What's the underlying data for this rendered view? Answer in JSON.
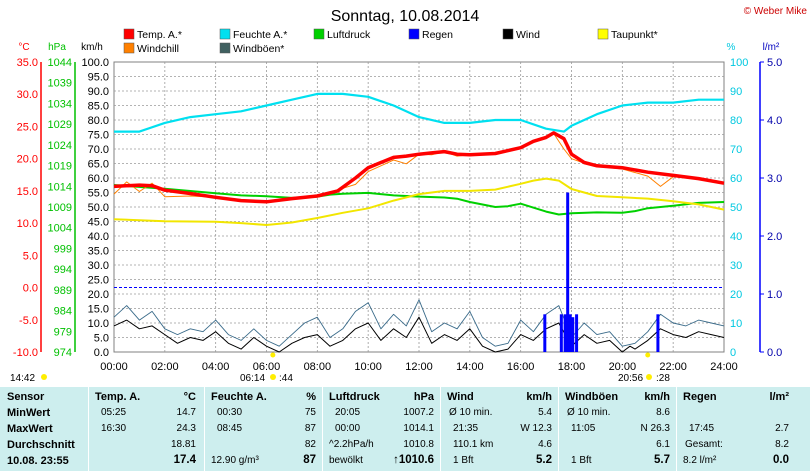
{
  "title": "Sonntag, 10.08.2014",
  "credit": "© Weber Mike",
  "colors": {
    "temp": "#ff0000",
    "humidity": "#00e0f0",
    "pressure": "#00d000",
    "rain": "#0000ff",
    "wind": "#000000",
    "dewpoint": "#ffff00",
    "windchill": "#ff8000",
    "gusts": "#406060",
    "table_bg": "#cdeeee"
  },
  "legend": [
    {
      "label": "Temp. A.*",
      "color": "#ff0000"
    },
    {
      "label": "Feuchte A.*",
      "color": "#00e0f0"
    },
    {
      "label": "Luftdruck",
      "color": "#00d000"
    },
    {
      "label": "Regen",
      "color": "#0000ff"
    },
    {
      "label": "Wind",
      "color": "#000000"
    },
    {
      "label": "Taupunkt*",
      "color": "#ffff00"
    },
    {
      "label": "Windchill",
      "color": "#ff8000"
    },
    {
      "label": "Windböen*",
      "color": "#406060"
    }
  ],
  "axis_units": {
    "temp": "°C",
    "pressure": "hPa",
    "wind": "km/h",
    "humidity": "%",
    "rain": "l/m²"
  },
  "chart_data": {
    "type": "line",
    "x_ticks": [
      "00:00",
      "02:00",
      "04:00",
      "06:00",
      "08:00",
      "10:00",
      "12:00",
      "14:00",
      "16:00",
      "18:00",
      "20:00",
      "22:00",
      "24:00"
    ],
    "xlim_hours": [
      0,
      24
    ],
    "temp_ticks": [
      "35.0",
      "30.0",
      "25.0",
      "20.0",
      "15.0",
      "10.0",
      "5.0",
      "0.0",
      "-5.0",
      "-10.0"
    ],
    "temp_lim": [
      -10,
      35
    ],
    "pressure_ticks": [
      "1044",
      "1039",
      "1034",
      "1029",
      "1024",
      "1019",
      "1014",
      "1009",
      "1004",
      "999",
      "994",
      "989",
      "984",
      "979",
      "974"
    ],
    "pressure_lim": [
      974,
      1044
    ],
    "wind_ticks": [
      "100.0",
      "95.0",
      "90.0",
      "85.0",
      "80.0",
      "75.0",
      "70.0",
      "65.0",
      "60.0",
      "55.0",
      "50.0",
      "45.0",
      "40.0",
      "35.0",
      "30.0",
      "25.0",
      "20.0",
      "15.0",
      "10.0",
      "5.0",
      "0.0"
    ],
    "wind_lim": [
      0,
      100
    ],
    "humidity_ticks": [
      "100",
      "90",
      "80",
      "70",
      "60",
      "50",
      "40",
      "30",
      "20",
      "10",
      "0"
    ],
    "humidity_lim": [
      0,
      100
    ],
    "rain_ticks": [
      "5.0",
      "4.0",
      "3.0",
      "2.0",
      "1.0",
      "0.0"
    ],
    "rain_lim": [
      0,
      5
    ],
    "temperature": {
      "name": "Temp. A.*",
      "x": [
        0,
        1,
        1.5,
        2,
        3,
        4,
        5,
        6,
        7,
        8,
        8.8,
        9.5,
        10,
        10.5,
        11,
        11.5,
        12,
        12.5,
        13,
        13.5,
        14,
        15,
        16,
        16.5,
        17,
        17.3,
        17.7,
        18,
        18.5,
        19,
        20,
        21,
        22,
        23,
        24
      ],
      "y": [
        15.7,
        15.9,
        15.8,
        15.1,
        14.6,
        14.0,
        13.5,
        13.3,
        13.8,
        14.2,
        15.0,
        17.0,
        18.6,
        19.4,
        20.2,
        20.4,
        20.7,
        20.9,
        21.1,
        20.7,
        20.6,
        20.8,
        21.7,
        22.7,
        23.3,
        24.0,
        23.1,
        20.7,
        19.4,
        18.9,
        18.6,
        17.9,
        17.4,
        16.9,
        16.2
      ]
    },
    "windchill": {
      "name": "Windchill",
      "x": [
        0,
        0.5,
        1,
        1.5,
        2,
        3,
        4,
        5,
        6,
        7,
        8,
        9,
        9.5,
        10,
        10.5,
        11,
        11.5,
        12,
        12.5,
        13,
        13.5,
        14,
        15,
        16,
        16.5,
        17,
        17.3,
        17.7,
        18,
        18.5,
        19,
        20,
        21,
        21.5,
        22,
        23,
        24
      ],
      "y": [
        14.5,
        16.4,
        14.9,
        16.2,
        14.1,
        14.2,
        14.0,
        13.5,
        13.2,
        13.8,
        14.1,
        15.4,
        16.0,
        18.0,
        18.9,
        19.8,
        19.2,
        20.7,
        20.6,
        21.1,
        20.4,
        20.6,
        20.8,
        21.6,
        22.5,
        23.4,
        23.9,
        21.5,
        20.0,
        19.3,
        18.8,
        18.4,
        17.3,
        15.7,
        17.2,
        16.8,
        16.2
      ]
    },
    "dewpoint": {
      "name": "Taupunkt*",
      "x": [
        0,
        2,
        4,
        5,
        6,
        7,
        8,
        9,
        10,
        11,
        12,
        13,
        14,
        15,
        16,
        16.5,
        17,
        17.5,
        18,
        19,
        20,
        21,
        22,
        23,
        24
      ],
      "y": [
        10.6,
        10.3,
        10.2,
        10.0,
        9.7,
        10.1,
        10.8,
        11.6,
        12.3,
        13.5,
        14.5,
        15.0,
        15.0,
        15.2,
        16.1,
        16.6,
        16.9,
        16.6,
        15.3,
        14.2,
        14.0,
        13.8,
        13.4,
        12.9,
        12.1
      ]
    },
    "humidity": {
      "name": "Feuchte A.*",
      "x": [
        0,
        1,
        2,
        3,
        4,
        5,
        6,
        7,
        8,
        9,
        10,
        11,
        12,
        13,
        14,
        15,
        16,
        17,
        17.7,
        18,
        19,
        20,
        21,
        22,
        23,
        24
      ],
      "y": [
        76,
        76,
        79,
        81,
        82,
        83,
        85,
        87,
        89,
        89,
        88,
        85,
        81,
        79,
        79,
        80,
        80,
        77,
        76,
        78,
        82,
        85,
        86,
        86,
        87,
        87
      ]
    },
    "pressure": {
      "name": "Luftdruck",
      "x": [
        0,
        2,
        4,
        5,
        6,
        7,
        8,
        8.5,
        9,
        10,
        11,
        12,
        13,
        13.5,
        14,
        15,
        15.5,
        16,
        17,
        17.5,
        18,
        19,
        20,
        20.5,
        21,
        22,
        23,
        24
      ],
      "y": [
        1014.3,
        1013.4,
        1012.3,
        1011.8,
        1011.6,
        1011.2,
        1011.5,
        1012.0,
        1012.2,
        1012.4,
        1011.8,
        1011.5,
        1011.3,
        1011.0,
        1010.2,
        1009.0,
        1009.2,
        1009.8,
        1007.9,
        1007.2,
        1007.5,
        1007.7,
        1007.6,
        1008.0,
        1008.7,
        1009.3,
        1010.0,
        1010.2
      ]
    },
    "wind": {
      "name": "Wind",
      "x": [
        0,
        0.5,
        1,
        1.5,
        2,
        2.5,
        3,
        3.5,
        4,
        4.5,
        5,
        5.5,
        6,
        6.5,
        7,
        7.5,
        8,
        8.5,
        9,
        9.5,
        10,
        10.5,
        11,
        11.5,
        12,
        12.5,
        13,
        13.5,
        14,
        14.5,
        15,
        15.5,
        16,
        16.5,
        17,
        17.5,
        18,
        18.5,
        19,
        19.5,
        20,
        20.3,
        20.5,
        21,
        21.5,
        22,
        22.5,
        23,
        23.5,
        24
      ],
      "y": [
        9,
        11,
        8,
        9,
        6,
        3,
        5,
        4,
        7,
        3,
        1,
        5,
        2,
        0,
        3,
        5,
        6,
        2,
        4,
        8,
        10,
        4,
        8,
        5,
        12,
        3,
        6,
        4,
        8,
        2,
        0,
        1,
        6,
        4,
        8,
        10,
        2,
        6,
        3,
        4,
        0,
        2,
        1,
        4,
        8,
        6,
        5,
        7,
        6,
        5
      ]
    },
    "gusts": {
      "name": "Windböen*",
      "x": [
        0,
        0.5,
        1,
        1.5,
        2,
        2.5,
        3,
        3.5,
        4,
        4.5,
        5,
        5.5,
        6,
        6.5,
        7,
        7.5,
        8,
        8.5,
        9,
        9.5,
        10,
        10.5,
        11,
        11.5,
        12,
        12.5,
        13,
        13.5,
        14,
        14.5,
        15,
        15.5,
        16,
        16.5,
        17,
        17.5,
        18,
        18.5,
        19,
        19.5,
        20,
        20.5,
        21,
        21.5,
        22,
        22.5,
        23,
        23.5,
        24
      ],
      "y": [
        12,
        16,
        11,
        14,
        8,
        6,
        8,
        7,
        11,
        6,
        4,
        8,
        4,
        2,
        6,
        10,
        12,
        5,
        8,
        14,
        17,
        8,
        13,
        9,
        18,
        7,
        10,
        8,
        14,
        5,
        2,
        3,
        11,
        7,
        13,
        16,
        5,
        10,
        6,
        7,
        2,
        3,
        7,
        13,
        10,
        9,
        11,
        10,
        9
      ]
    },
    "rain_bars": [
      {
        "time": 16.95,
        "value": 0.65
      },
      {
        "time": 17.6,
        "value": 0.65
      },
      {
        "time": 17.75,
        "value": 0.65
      },
      {
        "time": 17.85,
        "value": 2.75
      },
      {
        "time": 17.95,
        "value": 0.65
      },
      {
        "time": 18.05,
        "value": 0.6
      },
      {
        "time": 18.2,
        "value": 0.65
      },
      {
        "time": 21.4,
        "value": 0.65
      }
    ],
    "reference_line_temp": 0.0
  },
  "annotations": {
    "sunrise": "06:14",
    "sunset": "20:56",
    "moon_left": "14:42",
    "moon_rise_mid": ":44",
    "moon_right": ":28"
  },
  "table": {
    "sensor": {
      "header": "Sensor",
      "rows": [
        "MinWert",
        "MaxWert",
        "Durchschnitt",
        "10.08. 23:55"
      ]
    },
    "temp": {
      "header": "Temp. A.",
      "unit": "°C",
      "rows": [
        [
          "05:25",
          "14.7"
        ],
        [
          "16:30",
          "24.3"
        ],
        [
          "",
          "18.81"
        ],
        [
          "",
          "17.4"
        ]
      ]
    },
    "humidity": {
      "header": "Feuchte A.",
      "unit": "%",
      "rows": [
        [
          "00:30",
          "75"
        ],
        [
          "08:45",
          "87"
        ],
        [
          "",
          "82"
        ],
        [
          "12.90 g/m³",
          "87"
        ]
      ]
    },
    "pressure": {
      "header": "Luftdruck",
      "unit": "hPa",
      "rows": [
        [
          "20:05",
          "1007.2"
        ],
        [
          "00:00",
          "1014.1"
        ],
        [
          "^2.2hPa/h",
          "1010.8"
        ],
        [
          "bewölkt",
          "↑1010.6"
        ]
      ]
    },
    "wind": {
      "header": "Wind",
      "unit": "km/h",
      "rows": [
        [
          "Ø 10 min.",
          "5.4"
        ],
        [
          "21:35",
          "W 12.3"
        ],
        [
          "110.1 km",
          "4.6"
        ],
        [
          "1 Bft",
          "5.2"
        ]
      ]
    },
    "gusts": {
      "header": "Windböen",
      "unit": "km/h",
      "rows": [
        [
          "Ø 10 min.",
          "8.6"
        ],
        [
          "11:05",
          "N 26.3"
        ],
        [
          "",
          "6.1"
        ],
        [
          "1 Bft",
          "5.7"
        ]
      ]
    },
    "rain": {
      "header": "Regen",
      "unit": "l/m²",
      "rows": [
        [
          "",
          ""
        ],
        [
          "17:45",
          "2.7"
        ],
        [
          "Gesamt:",
          "8.2"
        ],
        [
          "8.2 l/m²",
          "0.0"
        ]
      ]
    }
  }
}
